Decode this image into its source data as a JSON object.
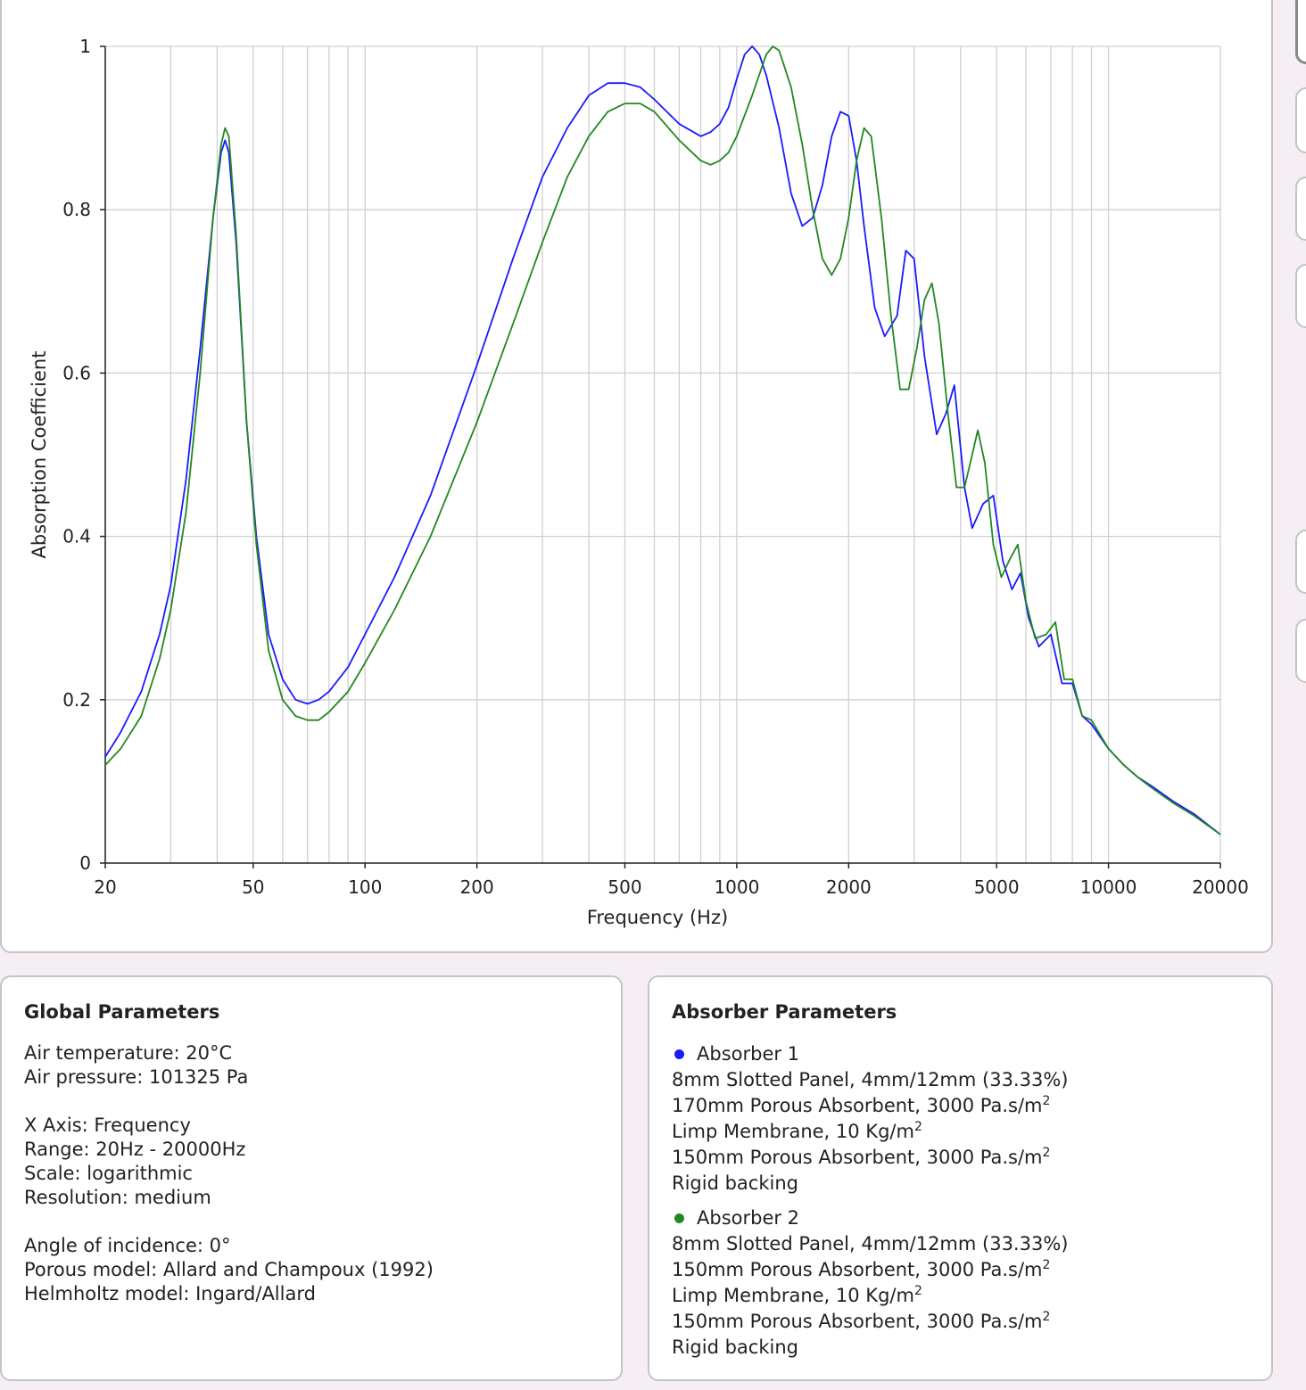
{
  "colors": {
    "absorber1": "#1a1aff",
    "absorber2": "#228822",
    "grid": "#d0d0d0"
  },
  "chart_data": {
    "type": "line",
    "xlabel": "Frequency (Hz)",
    "ylabel": "Absorption Coefficient",
    "xscale": "log",
    "xlim": [
      20,
      20000
    ],
    "ylim": [
      0,
      1
    ],
    "grid": true,
    "x_ticks": [
      20,
      50,
      100,
      200,
      500,
      1000,
      2000,
      5000,
      10000,
      20000
    ],
    "y_ticks": [
      0,
      0.2,
      0.4,
      0.6,
      0.8,
      1
    ],
    "x_tick_labels": [
      "20",
      "50",
      "100",
      "200",
      "500",
      "1000",
      "2000",
      "5000",
      "10000",
      "20000"
    ],
    "y_tick_labels": [
      "0",
      "0.2",
      "0.4",
      "0.6",
      "0.8",
      "1"
    ],
    "series": [
      {
        "name": "Absorber 1",
        "color": "#1a1aff",
        "points": [
          [
            20,
            0.13
          ],
          [
            22,
            0.16
          ],
          [
            25,
            0.21
          ],
          [
            28,
            0.28
          ],
          [
            30,
            0.34
          ],
          [
            33,
            0.47
          ],
          [
            36,
            0.63
          ],
          [
            39,
            0.79
          ],
          [
            41,
            0.87
          ],
          [
            42,
            0.885
          ],
          [
            43,
            0.87
          ],
          [
            45,
            0.76
          ],
          [
            48,
            0.54
          ],
          [
            51,
            0.4
          ],
          [
            55,
            0.28
          ],
          [
            60,
            0.225
          ],
          [
            65,
            0.2
          ],
          [
            70,
            0.195
          ],
          [
            75,
            0.2
          ],
          [
            80,
            0.21
          ],
          [
            90,
            0.24
          ],
          [
            100,
            0.28
          ],
          [
            120,
            0.35
          ],
          [
            150,
            0.45
          ],
          [
            200,
            0.61
          ],
          [
            250,
            0.74
          ],
          [
            300,
            0.84
          ],
          [
            350,
            0.9
          ],
          [
            400,
            0.94
          ],
          [
            450,
            0.955
          ],
          [
            500,
            0.955
          ],
          [
            550,
            0.95
          ],
          [
            600,
            0.935
          ],
          [
            700,
            0.905
          ],
          [
            800,
            0.89
          ],
          [
            850,
            0.895
          ],
          [
            900,
            0.905
          ],
          [
            950,
            0.925
          ],
          [
            1000,
            0.96
          ],
          [
            1050,
            0.99
          ],
          [
            1100,
            1.0
          ],
          [
            1150,
            0.99
          ],
          [
            1200,
            0.965
          ],
          [
            1300,
            0.9
          ],
          [
            1400,
            0.82
          ],
          [
            1500,
            0.78
          ],
          [
            1600,
            0.79
          ],
          [
            1700,
            0.83
          ],
          [
            1800,
            0.89
          ],
          [
            1900,
            0.92
          ],
          [
            2000,
            0.915
          ],
          [
            2100,
            0.86
          ],
          [
            2200,
            0.78
          ],
          [
            2350,
            0.68
          ],
          [
            2500,
            0.645
          ],
          [
            2700,
            0.67
          ],
          [
            2850,
            0.75
          ],
          [
            3000,
            0.74
          ],
          [
            3200,
            0.62
          ],
          [
            3450,
            0.525
          ],
          [
            3650,
            0.55
          ],
          [
            3850,
            0.585
          ],
          [
            4100,
            0.46
          ],
          [
            4300,
            0.41
          ],
          [
            4600,
            0.44
          ],
          [
            4900,
            0.45
          ],
          [
            5200,
            0.37
          ],
          [
            5500,
            0.335
          ],
          [
            5800,
            0.355
          ],
          [
            6100,
            0.3
          ],
          [
            6500,
            0.265
          ],
          [
            7000,
            0.28
          ],
          [
            7500,
            0.22
          ],
          [
            8000,
            0.22
          ],
          [
            8500,
            0.18
          ],
          [
            9000,
            0.17
          ],
          [
            10000,
            0.14
          ],
          [
            11000,
            0.12
          ],
          [
            12000,
            0.105
          ],
          [
            13000,
            0.095
          ],
          [
            15000,
            0.075
          ],
          [
            17000,
            0.06
          ],
          [
            20000,
            0.035
          ]
        ]
      },
      {
        "name": "Absorber 2",
        "color": "#228822",
        "points": [
          [
            20,
            0.12
          ],
          [
            22,
            0.14
          ],
          [
            25,
            0.18
          ],
          [
            28,
            0.25
          ],
          [
            30,
            0.31
          ],
          [
            33,
            0.43
          ],
          [
            36,
            0.6
          ],
          [
            39,
            0.79
          ],
          [
            41,
            0.88
          ],
          [
            42,
            0.9
          ],
          [
            43,
            0.89
          ],
          [
            45,
            0.77
          ],
          [
            48,
            0.54
          ],
          [
            51,
            0.39
          ],
          [
            55,
            0.26
          ],
          [
            60,
            0.2
          ],
          [
            65,
            0.18
          ],
          [
            70,
            0.175
          ],
          [
            75,
            0.175
          ],
          [
            80,
            0.185
          ],
          [
            90,
            0.21
          ],
          [
            100,
            0.245
          ],
          [
            120,
            0.31
          ],
          [
            150,
            0.4
          ],
          [
            200,
            0.54
          ],
          [
            250,
            0.66
          ],
          [
            300,
            0.76
          ],
          [
            350,
            0.84
          ],
          [
            400,
            0.89
          ],
          [
            450,
            0.92
          ],
          [
            500,
            0.93
          ],
          [
            550,
            0.93
          ],
          [
            600,
            0.92
          ],
          [
            700,
            0.885
          ],
          [
            800,
            0.86
          ],
          [
            850,
            0.855
          ],
          [
            900,
            0.86
          ],
          [
            950,
            0.87
          ],
          [
            1000,
            0.89
          ],
          [
            1100,
            0.94
          ],
          [
            1200,
            0.99
          ],
          [
            1250,
            1.0
          ],
          [
            1300,
            0.995
          ],
          [
            1400,
            0.95
          ],
          [
            1500,
            0.88
          ],
          [
            1600,
            0.8
          ],
          [
            1700,
            0.74
          ],
          [
            1800,
            0.72
          ],
          [
            1900,
            0.74
          ],
          [
            2000,
            0.79
          ],
          [
            2100,
            0.86
          ],
          [
            2200,
            0.9
          ],
          [
            2300,
            0.89
          ],
          [
            2450,
            0.79
          ],
          [
            2600,
            0.67
          ],
          [
            2750,
            0.58
          ],
          [
            2900,
            0.58
          ],
          [
            3050,
            0.63
          ],
          [
            3200,
            0.69
          ],
          [
            3350,
            0.71
          ],
          [
            3500,
            0.66
          ],
          [
            3700,
            0.55
          ],
          [
            3900,
            0.46
          ],
          [
            4100,
            0.46
          ],
          [
            4300,
            0.5
          ],
          [
            4450,
            0.53
          ],
          [
            4650,
            0.49
          ],
          [
            4900,
            0.39
          ],
          [
            5150,
            0.35
          ],
          [
            5400,
            0.37
          ],
          [
            5700,
            0.39
          ],
          [
            6000,
            0.32
          ],
          [
            6350,
            0.275
          ],
          [
            6800,
            0.28
          ],
          [
            7200,
            0.295
          ],
          [
            7600,
            0.225
          ],
          [
            8000,
            0.225
          ],
          [
            8500,
            0.18
          ],
          [
            9000,
            0.175
          ],
          [
            10000,
            0.14
          ],
          [
            11000,
            0.12
          ],
          [
            12000,
            0.105
          ],
          [
            13000,
            0.093
          ],
          [
            15000,
            0.073
          ],
          [
            17000,
            0.058
          ],
          [
            20000,
            0.035
          ]
        ]
      }
    ]
  },
  "global_params": {
    "title": "Global Parameters",
    "air_temperature": "Air temperature: 20°C",
    "air_pressure": "Air pressure: 101325 Pa",
    "x_axis": "X Axis: Frequency",
    "range": "Range: 20Hz - 20000Hz",
    "scale": "Scale: logarithmic",
    "resolution": "Resolution: medium",
    "angle": "Angle of incidence: 0°",
    "porous_model": "Porous model: Allard and Champoux (1992)",
    "helmholtz_model": "Helmholtz model: Ingard/Allard"
  },
  "absorber_params": {
    "title": "Absorber Parameters",
    "absorber1": {
      "name": "Absorber 1",
      "layer1": "8mm Slotted Panel, 4mm/12mm (33.33%)",
      "layer2": "170mm Porous Absorbent, 3000 Pa.s/m",
      "layer3": "Limp Membrane, 10 Kg/m",
      "layer4": "150mm Porous Absorbent, 3000 Pa.s/m",
      "layer5": "Rigid backing",
      "exponent": "2"
    },
    "absorber2": {
      "name": "Absorber 2",
      "layer1": "8mm Slotted Panel, 4mm/12mm (33.33%)",
      "layer2": "150mm Porous Absorbent, 3000 Pa.s/m",
      "layer3": "Limp Membrane, 10 Kg/m",
      "layer4": "150mm Porous Absorbent, 3000 Pa.s/m",
      "layer5": "Rigid backing",
      "exponent": "2"
    }
  }
}
